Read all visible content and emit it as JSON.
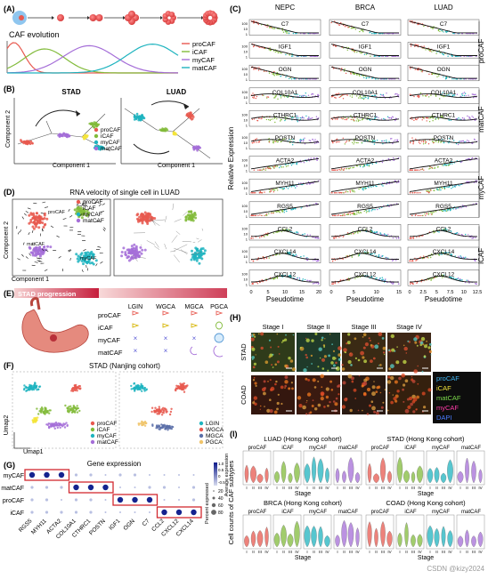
{
  "colors": {
    "proCAF": "#e8594f",
    "iCAF": "#f3e43a",
    "myCAF": "#1fb4bf",
    "matCAF": "#a56ed8",
    "green": "#82bb3b",
    "text": "#111111"
  },
  "legend": {
    "caf_types": [
      "proCAF",
      "iCAF",
      "myCAF",
      "matCAF"
    ]
  },
  "panelA": {
    "letter": "(A)",
    "title": "CAF evolution",
    "legend": [
      "proCAF",
      "iCAF",
      "myCAF",
      "matCAF"
    ]
  },
  "panelB": {
    "letter": "(B)",
    "left_title": "STAD",
    "right_title": "LUAD",
    "xlabel": "Component 1",
    "ylabel": "Component 2",
    "legend": [
      "proCAF",
      "iCAF",
      "myCAF",
      "matCAF"
    ]
  },
  "panelC": {
    "letter": "(C)",
    "columns": [
      "NEPC",
      "BRCA",
      "LUAD"
    ],
    "genes": [
      "C7",
      "IGF1",
      "OGN",
      "COL10A1",
      "CTHRC1",
      "POSTN",
      "ACTA2",
      "MYH11",
      "RGS5",
      "CCL2",
      "CXCL14",
      "CXCL12"
    ],
    "groups": [
      "proCAF",
      "matCAF",
      "myCAF",
      "iCAF"
    ],
    "xlabel": "Pseudotime",
    "ylabel": "Relative Expression",
    "xticks_left": [
      "0",
      "5",
      "10",
      "15",
      "20"
    ],
    "xticks_mid": [
      "0",
      "5",
      "10",
      "15"
    ],
    "xticks_right": [
      "0",
      "2.5",
      "5",
      "7.5",
      "10",
      "12.5"
    ],
    "yticks": [
      "100",
      "10",
      "1"
    ]
  },
  "panelD": {
    "letter": "(D)",
    "title": "RNA velocity of single cell in LUAD",
    "xlabel": "Component 1",
    "ylabel": "Component 2",
    "labels": [
      "proCAF",
      "iCAF",
      "matCAF",
      "myCAF"
    ],
    "legend": [
      "proCAF",
      "iCAF",
      "myCAF",
      "matCAF"
    ]
  },
  "panelE": {
    "letter": "(E)",
    "title": "STAD progression",
    "stages": [
      "LGIN",
      "WGCA",
      "MGCA",
      "PGCA"
    ],
    "rows": [
      "proCAF",
      "iCAF",
      "myCAF",
      "matCAF"
    ]
  },
  "panelF": {
    "letter": "(F)",
    "title": "STAD (Nanjing cohort)",
    "xlabel": "Umap1",
    "ylabel": "Umap2",
    "legend_left": [
      "proCAF",
      "iCAF",
      "myCAF",
      "matCAF"
    ],
    "legend_right": [
      "LGIN",
      "WGCA",
      "MGCA",
      "PGCA"
    ],
    "legend_right_colors": [
      "#1fb4bf",
      "#e8594f",
      "#5a6fa8",
      "#f0c46a"
    ]
  },
  "panelG": {
    "letter": "(G)",
    "title": "Gene expression",
    "rows": [
      "myCAF",
      "matCAF",
      "proCAF",
      "iCAF"
    ],
    "genes": [
      "RGS5",
      "MYH11",
      "ACTA2",
      "COL10A1",
      "CTHRC1",
      "POSTN",
      "IGF1",
      "OGN",
      "C7",
      "CCL2",
      "CXCL12",
      "CXCL14"
    ],
    "size_legend_title": "Percent expressed",
    "size_legend": [
      "20",
      "40",
      "60",
      "80"
    ],
    "color_legend_title": "Average expression",
    "color_legend": [
      "1.0",
      "0.5",
      "0",
      "-0.5"
    ]
  },
  "panelH": {
    "letter": "(H)",
    "stages": [
      "Stage I",
      "Stage II",
      "Stage III",
      "Stage IV"
    ],
    "rows": [
      "STAD",
      "COAD"
    ],
    "legend": [
      "proCAF",
      "iCAF",
      "matCAF",
      "myCAF",
      "DAPI"
    ],
    "legend_colors": [
      "#3fb3f0",
      "#f3e43a",
      "#7bd84a",
      "#ff3ba7",
      "#4a7bff"
    ]
  },
  "panelI": {
    "letter": "(I)",
    "cohorts": [
      "LUAD (Hong Kong cohort)",
      "STAD (Hong Kong cohort)",
      "BRCA (Hong Kong cohort)",
      "COAD (Hong Kong cohort)"
    ],
    "subtypes": [
      "proCAF",
      "iCAF",
      "myCAF",
      "matCAF"
    ],
    "stage_ticks": [
      "I",
      "II",
      "III",
      "IV"
    ],
    "xlabel": "Stage",
    "ylabel": "Cell counts of CAF subtypes",
    "watermark": "CSDN @kizy2024"
  }
}
